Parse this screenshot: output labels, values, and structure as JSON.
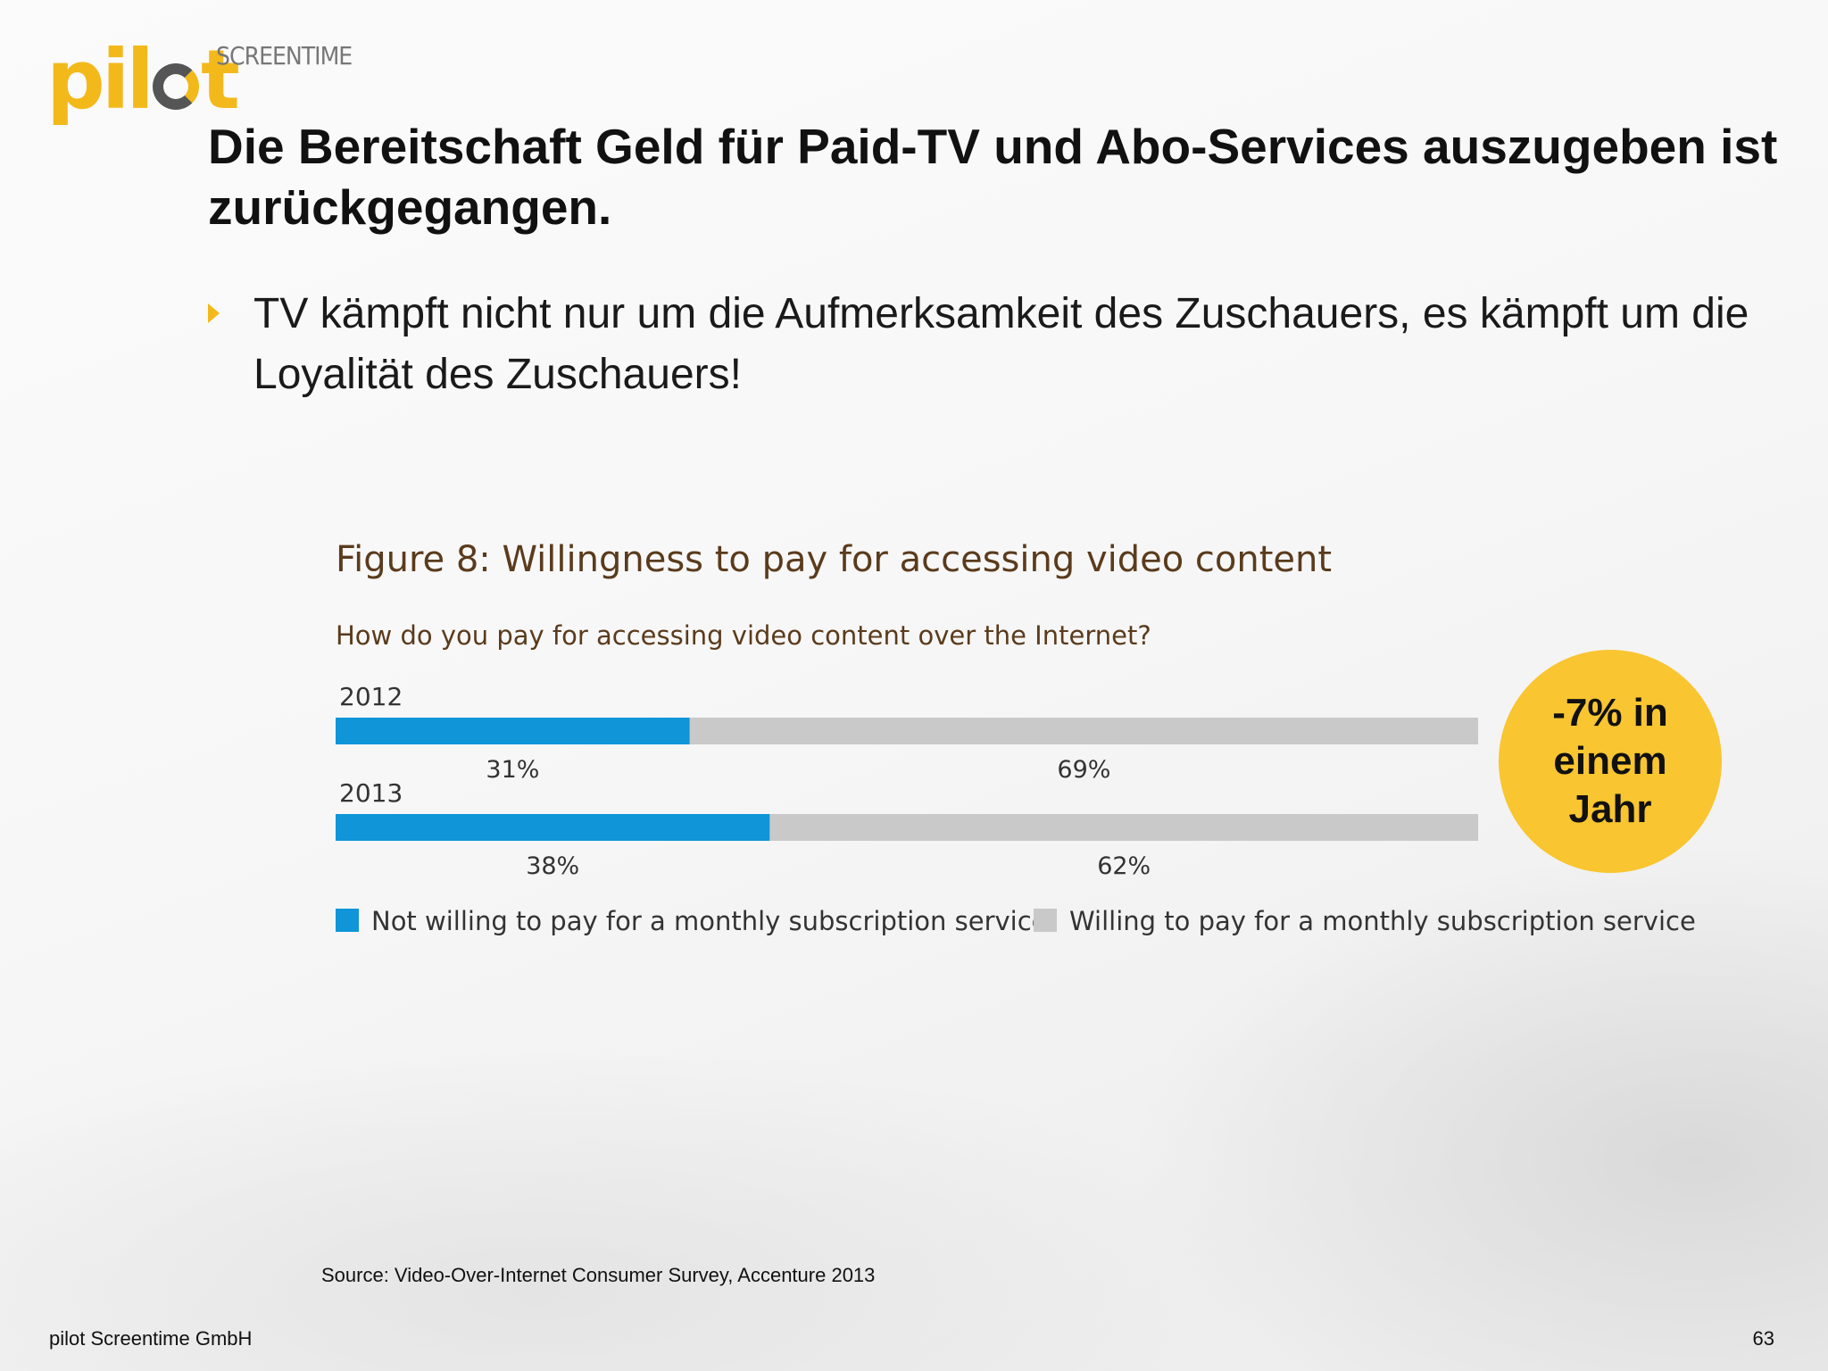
{
  "logo": {
    "word": "pilot",
    "sub": "SCREENTIME",
    "colors": {
      "accent": "#f3b91b",
      "dark": "#555555"
    }
  },
  "slide": {
    "title": "Die Bereitschaft Geld für Paid-TV und Abo-Services auszugeben ist zurückgegangen.",
    "bullet": "TV kämpft nicht nur um die Aufmerksamkeit des Zuschauers, es kämpft um die Loyalität des Zuschauers!",
    "bullet_icon": "triangle-right-icon",
    "badge": "-7% in einem Jahr",
    "source": "Source: Video-Over-Internet Consumer Survey, Accenture 2013",
    "footer": "pilot Screentime GmbH",
    "page_number": "63"
  },
  "chart_data": {
    "type": "bar",
    "orientation": "horizontal",
    "stacked": true,
    "title": "Figure 8: Willingness to pay for accessing video content",
    "subtitle": "How do you pay for accessing video content over the Internet?",
    "categories": [
      "2012",
      "2013"
    ],
    "series": [
      {
        "name": "Not willing to pay for a monthly subscription service",
        "values": [
          31,
          38
        ],
        "labels": [
          "31%",
          "38%"
        ],
        "color": "#0f95d8"
      },
      {
        "name": "Willing to pay for a monthly subscription service",
        "values": [
          69,
          62
        ],
        "labels": [
          "69%",
          "62%"
        ],
        "color": "#c9c9c9"
      }
    ],
    "xlim": [
      0,
      100
    ],
    "grid": false,
    "legend": "bottom"
  }
}
